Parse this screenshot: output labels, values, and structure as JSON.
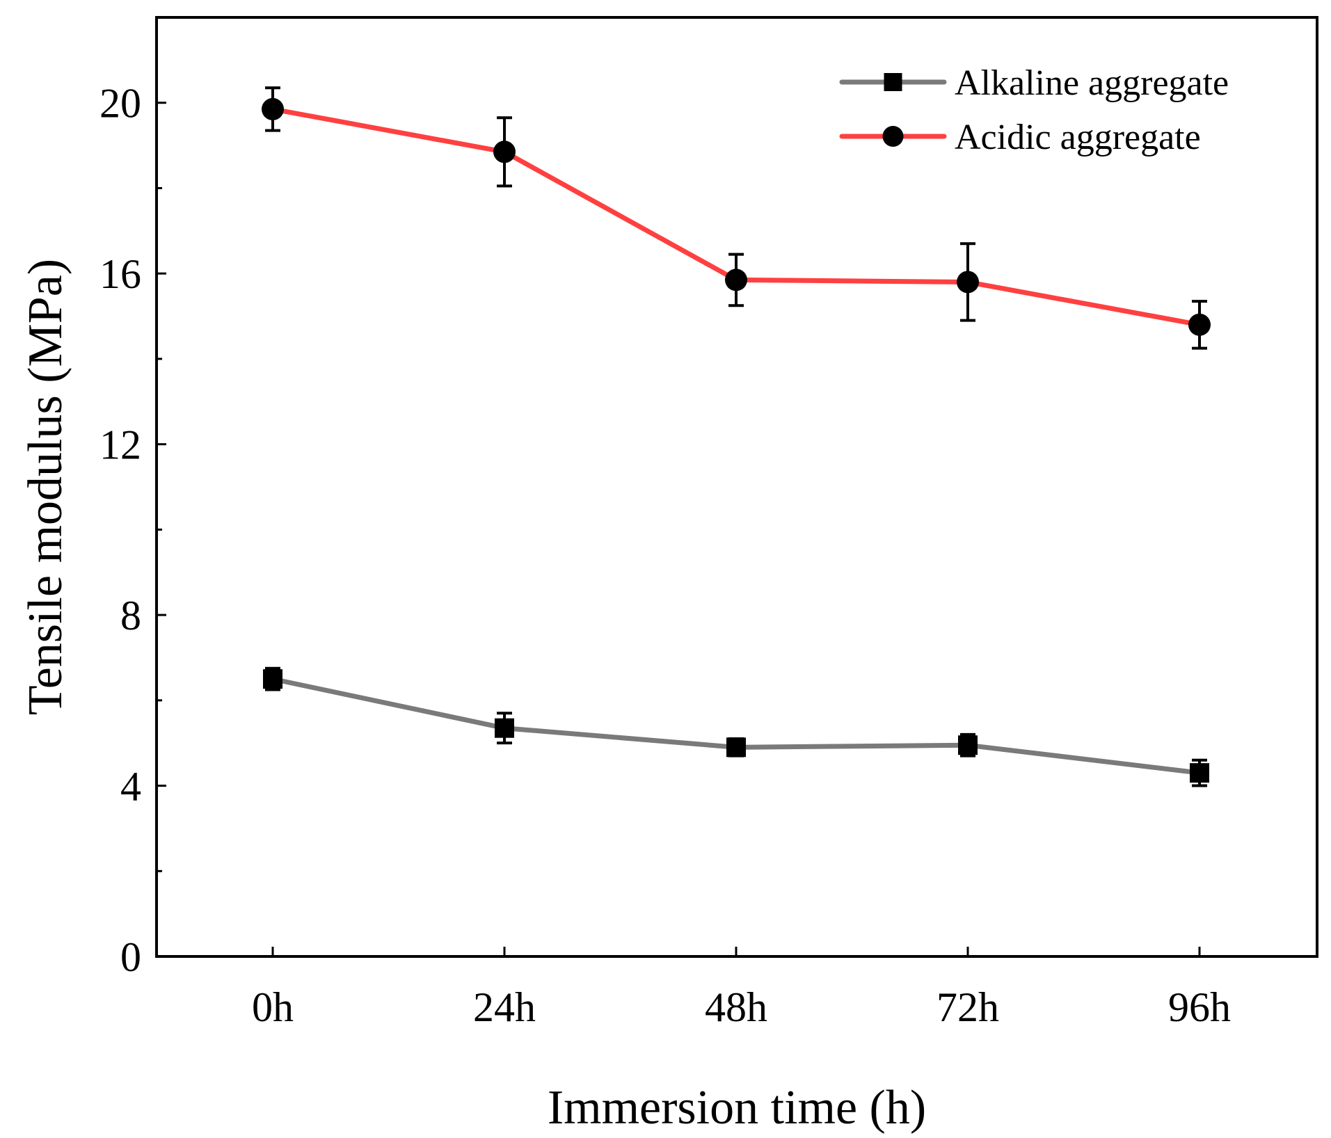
{
  "chart_data": {
    "type": "line",
    "title": "",
    "xlabel": "Immersion time (h)",
    "ylabel": "Tensile modulus (MPa)",
    "categories": [
      "0h",
      "24h",
      "48h",
      "72h",
      "96h"
    ],
    "ylim": [
      0,
      22
    ],
    "yticks": [
      "0",
      "4",
      "8",
      "12",
      "16",
      "20"
    ],
    "ytick_values": [
      0,
      4,
      8,
      12,
      16,
      20
    ],
    "yminor_values": [
      2,
      6,
      10,
      14,
      18
    ],
    "grid": false,
    "legend_position": "top-right",
    "series": [
      {
        "name": "Alkaline aggregate",
        "color": "#7a7a7a",
        "marker": "square",
        "values": [
          6.5,
          5.35,
          4.9,
          4.95,
          4.3
        ],
        "errors": [
          0.25,
          0.35,
          0.2,
          0.25,
          0.3
        ]
      },
      {
        "name": "Acidic aggregate",
        "color": "#ff4040",
        "marker": "circle",
        "values": [
          19.85,
          18.85,
          15.85,
          15.8,
          14.8
        ],
        "errors": [
          0.5,
          0.8,
          0.6,
          0.9,
          0.55
        ]
      }
    ]
  }
}
